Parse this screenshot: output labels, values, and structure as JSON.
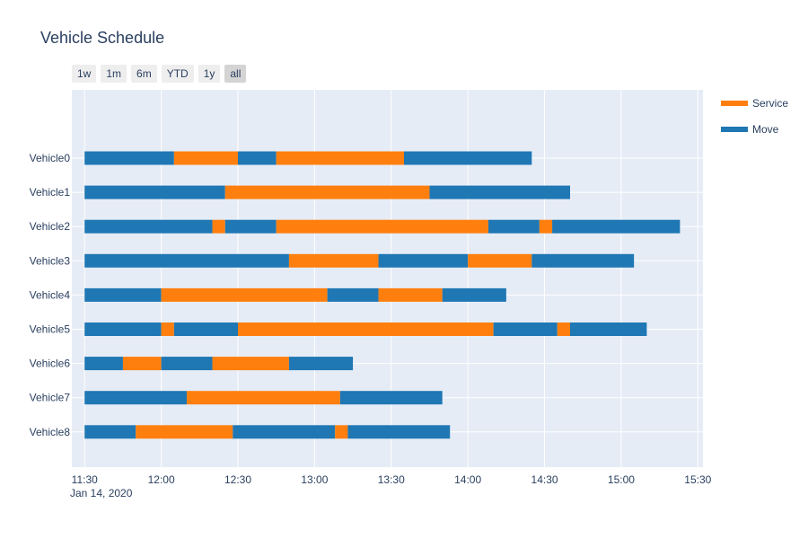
{
  "title": "Vehicle Schedule",
  "range_buttons": [
    {
      "label": "1w",
      "active": false
    },
    {
      "label": "1m",
      "active": false
    },
    {
      "label": "6m",
      "active": false
    },
    {
      "label": "YTD",
      "active": false
    },
    {
      "label": "1y",
      "active": false
    },
    {
      "label": "all",
      "active": true
    }
  ],
  "colors": {
    "Service": "#ff7f0e",
    "Move": "#1f77b4",
    "plot_bg": "#e5ecf6",
    "grid": "#ffffff",
    "text": "#2a3f5f"
  },
  "chart_data": {
    "type": "timeline",
    "title": "Vehicle Schedule",
    "x_axis": {
      "range": [
        "2020-01-14 11:25",
        "2020-01-14 15:32"
      ],
      "tick_labels": [
        "11:30",
        "12:00",
        "12:30",
        "13:00",
        "13:30",
        "14:00",
        "14:30",
        "15:00",
        "15:30"
      ],
      "date_label": "Jan 14, 2020"
    },
    "categories": [
      "Vehicle0",
      "Vehicle1",
      "Vehicle2",
      "Vehicle3",
      "Vehicle4",
      "Vehicle5",
      "Vehicle6",
      "Vehicle7",
      "Vehicle8"
    ],
    "legend": {
      "position": "top-right",
      "entries": [
        "Service",
        "Move"
      ]
    },
    "grid": true,
    "tasks": [
      {
        "resource": "Vehicle0",
        "type": "Move",
        "start": "11:30",
        "end": "12:05"
      },
      {
        "resource": "Vehicle0",
        "type": "Service",
        "start": "12:05",
        "end": "12:30"
      },
      {
        "resource": "Vehicle0",
        "type": "Move",
        "start": "12:30",
        "end": "12:45"
      },
      {
        "resource": "Vehicle0",
        "type": "Service",
        "start": "12:45",
        "end": "13:35"
      },
      {
        "resource": "Vehicle0",
        "type": "Move",
        "start": "13:35",
        "end": "14:25"
      },
      {
        "resource": "Vehicle1",
        "type": "Move",
        "start": "11:30",
        "end": "12:25"
      },
      {
        "resource": "Vehicle1",
        "type": "Service",
        "start": "12:25",
        "end": "13:45"
      },
      {
        "resource": "Vehicle1",
        "type": "Move",
        "start": "13:45",
        "end": "14:40"
      },
      {
        "resource": "Vehicle2",
        "type": "Move",
        "start": "11:30",
        "end": "12:20"
      },
      {
        "resource": "Vehicle2",
        "type": "Service",
        "start": "12:20",
        "end": "12:25"
      },
      {
        "resource": "Vehicle2",
        "type": "Move",
        "start": "12:25",
        "end": "12:45"
      },
      {
        "resource": "Vehicle2",
        "type": "Service",
        "start": "12:45",
        "end": "14:08"
      },
      {
        "resource": "Vehicle2",
        "type": "Move",
        "start": "14:08",
        "end": "14:28"
      },
      {
        "resource": "Vehicle2",
        "type": "Service",
        "start": "14:28",
        "end": "14:33"
      },
      {
        "resource": "Vehicle2",
        "type": "Move",
        "start": "14:33",
        "end": "15:23"
      },
      {
        "resource": "Vehicle3",
        "type": "Move",
        "start": "11:30",
        "end": "12:50"
      },
      {
        "resource": "Vehicle3",
        "type": "Service",
        "start": "12:50",
        "end": "13:25"
      },
      {
        "resource": "Vehicle3",
        "type": "Move",
        "start": "13:25",
        "end": "14:00"
      },
      {
        "resource": "Vehicle3",
        "type": "Service",
        "start": "14:00",
        "end": "14:25"
      },
      {
        "resource": "Vehicle3",
        "type": "Move",
        "start": "14:25",
        "end": "15:05"
      },
      {
        "resource": "Vehicle4",
        "type": "Move",
        "start": "11:30",
        "end": "12:00"
      },
      {
        "resource": "Vehicle4",
        "type": "Service",
        "start": "12:00",
        "end": "13:05"
      },
      {
        "resource": "Vehicle4",
        "type": "Move",
        "start": "13:05",
        "end": "13:25"
      },
      {
        "resource": "Vehicle4",
        "type": "Service",
        "start": "13:25",
        "end": "13:50"
      },
      {
        "resource": "Vehicle4",
        "type": "Move",
        "start": "13:50",
        "end": "14:15"
      },
      {
        "resource": "Vehicle5",
        "type": "Move",
        "start": "11:30",
        "end": "12:00"
      },
      {
        "resource": "Vehicle5",
        "type": "Service",
        "start": "12:00",
        "end": "12:05"
      },
      {
        "resource": "Vehicle5",
        "type": "Move",
        "start": "12:05",
        "end": "12:30"
      },
      {
        "resource": "Vehicle5",
        "type": "Service",
        "start": "12:30",
        "end": "14:10"
      },
      {
        "resource": "Vehicle5",
        "type": "Move",
        "start": "14:10",
        "end": "14:35"
      },
      {
        "resource": "Vehicle5",
        "type": "Service",
        "start": "14:35",
        "end": "14:40"
      },
      {
        "resource": "Vehicle5",
        "type": "Move",
        "start": "14:40",
        "end": "15:10"
      },
      {
        "resource": "Vehicle6",
        "type": "Move",
        "start": "11:30",
        "end": "11:45"
      },
      {
        "resource": "Vehicle6",
        "type": "Service",
        "start": "11:45",
        "end": "12:00"
      },
      {
        "resource": "Vehicle6",
        "type": "Move",
        "start": "12:00",
        "end": "12:20"
      },
      {
        "resource": "Vehicle6",
        "type": "Service",
        "start": "12:20",
        "end": "12:50"
      },
      {
        "resource": "Vehicle6",
        "type": "Move",
        "start": "12:50",
        "end": "13:15"
      },
      {
        "resource": "Vehicle7",
        "type": "Move",
        "start": "11:30",
        "end": "12:10"
      },
      {
        "resource": "Vehicle7",
        "type": "Service",
        "start": "12:10",
        "end": "13:10"
      },
      {
        "resource": "Vehicle7",
        "type": "Move",
        "start": "13:10",
        "end": "13:50"
      },
      {
        "resource": "Vehicle8",
        "type": "Move",
        "start": "11:30",
        "end": "11:50"
      },
      {
        "resource": "Vehicle8",
        "type": "Service",
        "start": "11:50",
        "end": "12:28"
      },
      {
        "resource": "Vehicle8",
        "type": "Move",
        "start": "12:28",
        "end": "13:08"
      },
      {
        "resource": "Vehicle8",
        "type": "Service",
        "start": "13:08",
        "end": "13:13"
      },
      {
        "resource": "Vehicle8",
        "type": "Move",
        "start": "13:13",
        "end": "13:53"
      }
    ]
  }
}
